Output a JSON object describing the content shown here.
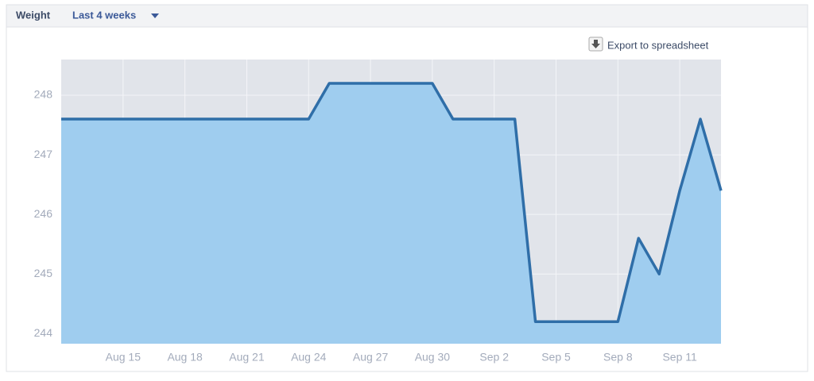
{
  "header": {
    "title": "Weight",
    "range": "Last 4 weeks",
    "export": "Export to spreadsheet"
  },
  "chart_data": {
    "type": "area",
    "categories": [
      null,
      null,
      null,
      "Aug 15",
      null,
      null,
      "Aug 18",
      null,
      null,
      "Aug 21",
      null,
      null,
      "Aug 24",
      null,
      null,
      "Aug 27",
      null,
      null,
      "Aug 30",
      null,
      null,
      "Sep 2",
      null,
      null,
      "Sep 5",
      null,
      null,
      "Sep 8",
      null,
      null,
      "Sep 11",
      null,
      null
    ],
    "series": [
      {
        "name": "Weight",
        "color": "#2f6ea8",
        "fill": "#9fcdef",
        "values": [
          247.6,
          247.6,
          247.6,
          247.6,
          247.6,
          247.6,
          247.6,
          247.6,
          247.6,
          247.6,
          247.6,
          247.6,
          247.6,
          248.2,
          248.2,
          248.2,
          248.2,
          248.2,
          248.2,
          247.6,
          247.6,
          247.6,
          247.6,
          244.2,
          244.2,
          244.2,
          244.2,
          244.2,
          245.6,
          245.0,
          246.4,
          247.6,
          246.4
        ]
      }
    ],
    "ylim": [
      243.83,
      248.6
    ],
    "yticks": [
      244,
      245,
      246,
      247,
      248
    ],
    "grid": true
  }
}
